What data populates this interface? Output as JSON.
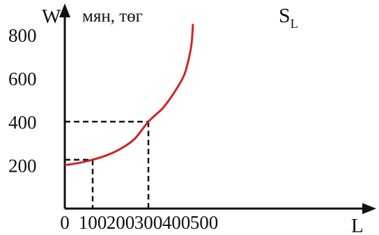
{
  "chart_data": {
    "type": "line",
    "title": "",
    "ylabel": "W",
    "y_unit": "мян, төг",
    "xlabel": "L",
    "xlim": [
      0,
      500
    ],
    "ylim": [
      0,
      800
    ],
    "x_ticks": [
      {
        "value": 0,
        "label": "0"
      },
      {
        "value": 100,
        "label": "100"
      },
      {
        "value": 200,
        "label": "200"
      },
      {
        "value": 300,
        "label": "300"
      },
      {
        "value": 400,
        "label": "400"
      },
      {
        "value": 500,
        "label": "500"
      }
    ],
    "y_ticks": [
      {
        "value": 200,
        "label": "200"
      },
      {
        "value": 400,
        "label": "400"
      },
      {
        "value": 600,
        "label": "600"
      },
      {
        "value": 800,
        "label": "800"
      }
    ],
    "series": [
      {
        "name": "S",
        "name_subscript": "L",
        "color": "#d32222",
        "x": [
          0,
          50,
          100,
          150,
          200,
          250,
          300,
          350,
          380,
          410,
          430,
          445,
          455,
          460
        ],
        "y": [
          200,
          210,
          225,
          245,
          275,
          320,
          400,
          460,
          510,
          570,
          620,
          690,
          760,
          850
        ]
      }
    ],
    "reference_lines": [
      {
        "x": 100,
        "y": 225
      },
      {
        "x": 300,
        "y": 400
      }
    ],
    "grid": false,
    "legend": "none"
  }
}
